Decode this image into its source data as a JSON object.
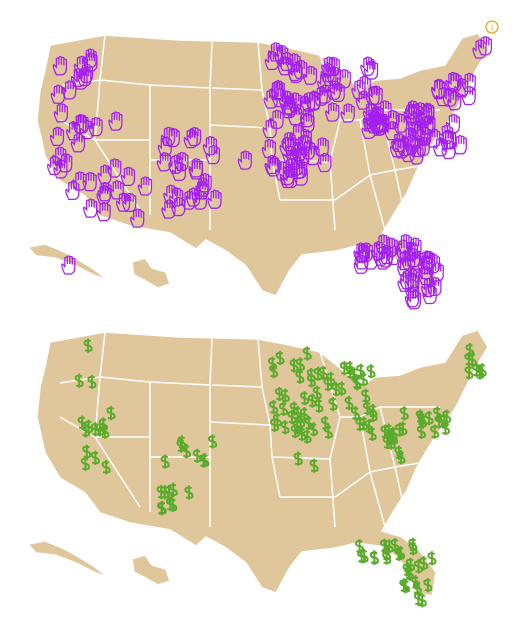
{
  "info_icon": "i"
}
